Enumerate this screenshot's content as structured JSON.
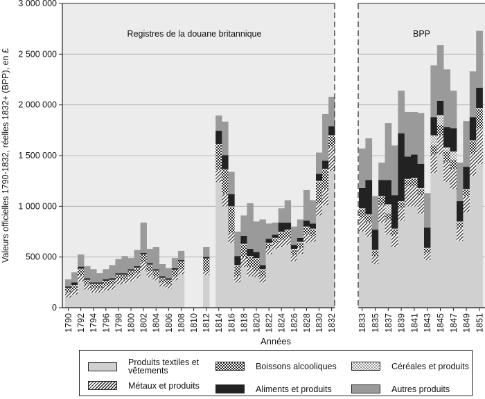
{
  "chart_data": {
    "type": "bar",
    "stacked": true,
    "ylabel": "Valeurs officielles 1790-1832, réelles 1832+ (BPP), en £",
    "xlabel": "Années",
    "ylim": [
      0,
      3000000
    ],
    "yticks": [
      0,
      500000,
      1000000,
      1500000,
      2000000,
      2500000,
      3000000
    ],
    "ytick_labels": [
      "0",
      "500 000",
      "1 000 000",
      "1 500 000",
      "2 000 000",
      "2 500 000",
      "3 000 000"
    ],
    "grid": true,
    "panels": [
      {
        "title": "Registres de la douane britannique",
        "categories": [
          "1790",
          "1791",
          "1792",
          "1793",
          "1794",
          "1795",
          "1796",
          "1797",
          "1798",
          "1799",
          "1800",
          "1801",
          "1802",
          "1803",
          "1804",
          "1805",
          "1806",
          "1807",
          "1808",
          "1809",
          "1810",
          "1811",
          "1812",
          "1813",
          "1814",
          "1815",
          "1816",
          "1817",
          "1818",
          "1819",
          "1820",
          "1821",
          "1822",
          "1823",
          "1824",
          "1825",
          "1826",
          "1827",
          "1828",
          "1829",
          "1830",
          "1831",
          "1832"
        ],
        "tick_labels": [
          "1790",
          "1792",
          "1794",
          "1796",
          "1798",
          "1800",
          "1802",
          "1804",
          "1806",
          "1808",
          "1810",
          "1812",
          "1814",
          "1816",
          "1818",
          "1820",
          "1822",
          "1824",
          "1826",
          "1828",
          "1830",
          "1832"
        ],
        "series": [
          {
            "name": "Produits textiles et vêtements",
            "values": [
              100000,
              130000,
              260000,
              180000,
              150000,
              150000,
              170000,
              180000,
              230000,
              240000,
              260000,
              290000,
              370000,
              300000,
              270000,
              210000,
              190000,
              270000,
              330000,
              0,
              0,
              0,
              320000,
              0,
              1240000,
              1000000,
              640000,
              250000,
              400000,
              310000,
              300000,
              250000,
              530000,
              580000,
              600000,
              620000,
              460000,
              530000,
              640000,
              650000,
              910000,
              1010000,
              1350000
            ]
          },
          {
            "name": "Métaux et produits",
            "values": [
              50000,
              50000,
              60000,
              50000,
              40000,
              40000,
              50000,
              50000,
              50000,
              40000,
              50000,
              50000,
              80000,
              60000,
              40000,
              40000,
              40000,
              40000,
              50000,
              0,
              0,
              0,
              40000,
              0,
              120000,
              120000,
              100000,
              60000,
              100000,
              90000,
              60000,
              60000,
              60000,
              60000,
              70000,
              70000,
              60000,
              60000,
              80000,
              60000,
              120000,
              160000,
              240000
            ]
          },
          {
            "name": "Boissons alcooliques",
            "values": [
              40000,
              40000,
              60000,
              40000,
              40000,
              40000,
              40000,
              40000,
              40000,
              40000,
              50000,
              50000,
              70000,
              60000,
              50000,
              40000,
              40000,
              60000,
              70000,
              0,
              0,
              0,
              120000,
              0,
              250000,
              240000,
              250000,
              100000,
              120000,
              100000,
              120000,
              60000,
              40000,
              40000,
              70000,
              70000,
              50000,
              50000,
              70000,
              60000,
              210000,
              190000,
              100000
            ]
          },
          {
            "name": "Céréales et produits",
            "values": [
              5000,
              5000,
              5000,
              5000,
              5000,
              5000,
              5000,
              5000,
              5000,
              5000,
              5000,
              5000,
              5000,
              5000,
              5000,
              5000,
              5000,
              5000,
              5000,
              0,
              0,
              0,
              5000,
              0,
              5000,
              5000,
              10000,
              10000,
              10000,
              10000,
              10000,
              10000,
              10000,
              10000,
              10000,
              10000,
              10000,
              10000,
              10000,
              10000,
              10000,
              10000,
              10000
            ]
          },
          {
            "name": "Aliments et produits",
            "values": [
              15000,
              25000,
              20000,
              15000,
              15000,
              15000,
              15000,
              15000,
              15000,
              15000,
              15000,
              15000,
              15000,
              15000,
              15000,
              15000,
              15000,
              15000,
              15000,
              0,
              0,
              0,
              15000,
              0,
              130000,
              140000,
              120000,
              90000,
              80000,
              70000,
              60000,
              40000,
              40000,
              30000,
              90000,
              70000,
              40000,
              40000,
              60000,
              50000,
              70000,
              80000,
              90000
            ]
          },
          {
            "name": "Autres produits",
            "values": [
              70000,
              100000,
              120000,
              120000,
              130000,
              90000,
              100000,
              130000,
              140000,
              170000,
              110000,
              160000,
              300000,
              140000,
              220000,
              120000,
              100000,
              100000,
              90000,
              0,
              0,
              0,
              100000,
              0,
              150000,
              330000,
              220000,
              240000,
              200000,
              450000,
              300000,
              450000,
              150000,
              120000,
              140000,
              220000,
              180000,
              180000,
              300000,
              230000,
              210000,
              460000,
              290000
            ]
          }
        ]
      },
      {
        "title": "BPP",
        "categories": [
          "1833",
          "1834",
          "1835",
          "1836",
          "1837",
          "1838",
          "1839",
          "1840",
          "1841",
          "1842",
          "1843",
          "1844",
          "1845",
          "1846",
          "1847",
          "1848",
          "1849",
          "1850",
          "1851"
        ],
        "tick_labels": [
          "1833",
          "1835",
          "1837",
          "1839",
          "1841",
          "1843",
          "1845",
          "1847",
          "1849",
          "1851"
        ],
        "series": [
          {
            "name": "Produits textiles et vêtements",
            "values": [
              750000,
              700000,
              430000,
              840000,
              720000,
              600000,
              860000,
              1000000,
              1000000,
              930000,
              470000,
              1330000,
              1510000,
              1240000,
              1170000,
              660000,
              940000,
              1300000,
              1420000
            ]
          },
          {
            "name": "Métaux et produits",
            "values": [
              140000,
              140000,
              80000,
              170000,
              150000,
              120000,
              120000,
              200000,
              200000,
              180000,
              70000,
              180000,
              190000,
              200000,
              200000,
              130000,
              160000,
              220000,
              350000
            ]
          },
          {
            "name": "Boissons alcooliques",
            "values": [
              80000,
              70000,
              50000,
              80000,
              60000,
              50000,
              60000,
              60000,
              70000,
              60000,
              40000,
              90000,
              100000,
              100000,
              90000,
              50000,
              60000,
              120000,
              190000
            ]
          },
          {
            "name": "Céréales et produits",
            "values": [
              10000,
              10000,
              10000,
              10000,
              90000,
              10000,
              10000,
              10000,
              10000,
              10000,
              10000,
              100000,
              100000,
              40000,
              80000,
              10000,
              10000,
              10000,
              10000
            ]
          },
          {
            "name": "Aliments et produits",
            "values": [
              200000,
              340000,
              200000,
              160000,
              240000,
              330000,
              670000,
              220000,
              230000,
              240000,
              200000,
              180000,
              140000,
              200000,
              230000,
              200000,
              220000,
              230000,
              200000
            ]
          },
          {
            "name": "Autres produits",
            "values": [
              390000,
              410000,
              330000,
              170000,
              560000,
              490000,
              420000,
              440000,
              420000,
              500000,
              340000,
              510000,
              550000,
              570000,
              370000,
              380000,
              450000,
              450000,
              560000
            ]
          }
        ]
      }
    ],
    "legend_position": "bottom"
  },
  "legend": {
    "items": [
      {
        "label": "Produits textiles et vêtements",
        "pattern": "light-gray"
      },
      {
        "label": "Boissons alcooliques",
        "pattern": "checkered"
      },
      {
        "label": "Céréales et produits",
        "pattern": "light-checkered"
      },
      {
        "label": "Métaux et produits",
        "pattern": "diagonal-hatch"
      },
      {
        "label": "Aliments et produits",
        "pattern": "black"
      },
      {
        "label": "Autres produits",
        "pattern": "mid-gray"
      }
    ]
  }
}
